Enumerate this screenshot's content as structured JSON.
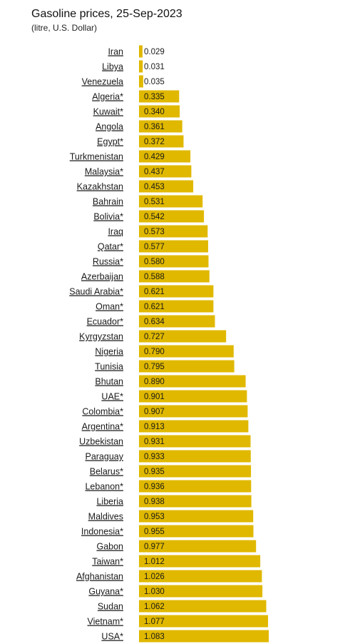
{
  "chart_data": {
    "type": "bar",
    "orientation": "horizontal",
    "title": "Gasoline prices, 25-Sep-2023",
    "subtitle": "(litre, U.S. Dollar)",
    "categories": [
      "Iran",
      "Libya",
      "Venezuela",
      "Algeria*",
      "Kuwait*",
      "Angola",
      "Egypt*",
      "Turkmenistan",
      "Malaysia*",
      "Kazakhstan",
      "Bahrain",
      "Bolivia*",
      "Iraq",
      "Qatar*",
      "Russia*",
      "Azerbaijan",
      "Saudi Arabia*",
      "Oman*",
      "Ecuador*",
      "Kyrgyzstan",
      "Nigeria",
      "Tunisia",
      "Bhutan",
      "UAE*",
      "Colombia*",
      "Argentina*",
      "Uzbekistan",
      "Paraguay",
      "Belarus*",
      "Lebanon*",
      "Liberia",
      "Maldives",
      "Indonesia*",
      "Gabon",
      "Taiwan*",
      "Afghanistan",
      "Guyana*",
      "Sudan",
      "Vietnam*",
      "USA*"
    ],
    "values": [
      0.029,
      0.031,
      0.035,
      0.335,
      0.34,
      0.361,
      0.372,
      0.429,
      0.437,
      0.453,
      0.531,
      0.542,
      0.573,
      0.577,
      0.58,
      0.588,
      0.621,
      0.621,
      0.634,
      0.727,
      0.79,
      0.795,
      0.89,
      0.901,
      0.907,
      0.913,
      0.931,
      0.933,
      0.935,
      0.936,
      0.938,
      0.953,
      0.955,
      0.977,
      1.012,
      1.026,
      1.03,
      1.062,
      1.077,
      1.083
    ],
    "value_labels": [
      "0.029",
      "0.031",
      "0.035",
      "0.335",
      "0.340",
      "0.361",
      "0.372",
      "0.429",
      "0.437",
      "0.453",
      "0.531",
      "0.542",
      "0.573",
      "0.577",
      "0.580",
      "0.588",
      "0.621",
      "0.621",
      "0.634",
      "0.727",
      "0.790",
      "0.795",
      "0.890",
      "0.901",
      "0.907",
      "0.913",
      "0.931",
      "0.933",
      "0.935",
      "0.936",
      "0.938",
      "0.953",
      "0.955",
      "0.977",
      "1.012",
      "1.026",
      "1.030",
      "1.062",
      "1.077",
      "1.083"
    ],
    "xlim": [
      0,
      1.083
    ],
    "grid": false,
    "legend": "none",
    "bar_color": "#e0b800"
  }
}
